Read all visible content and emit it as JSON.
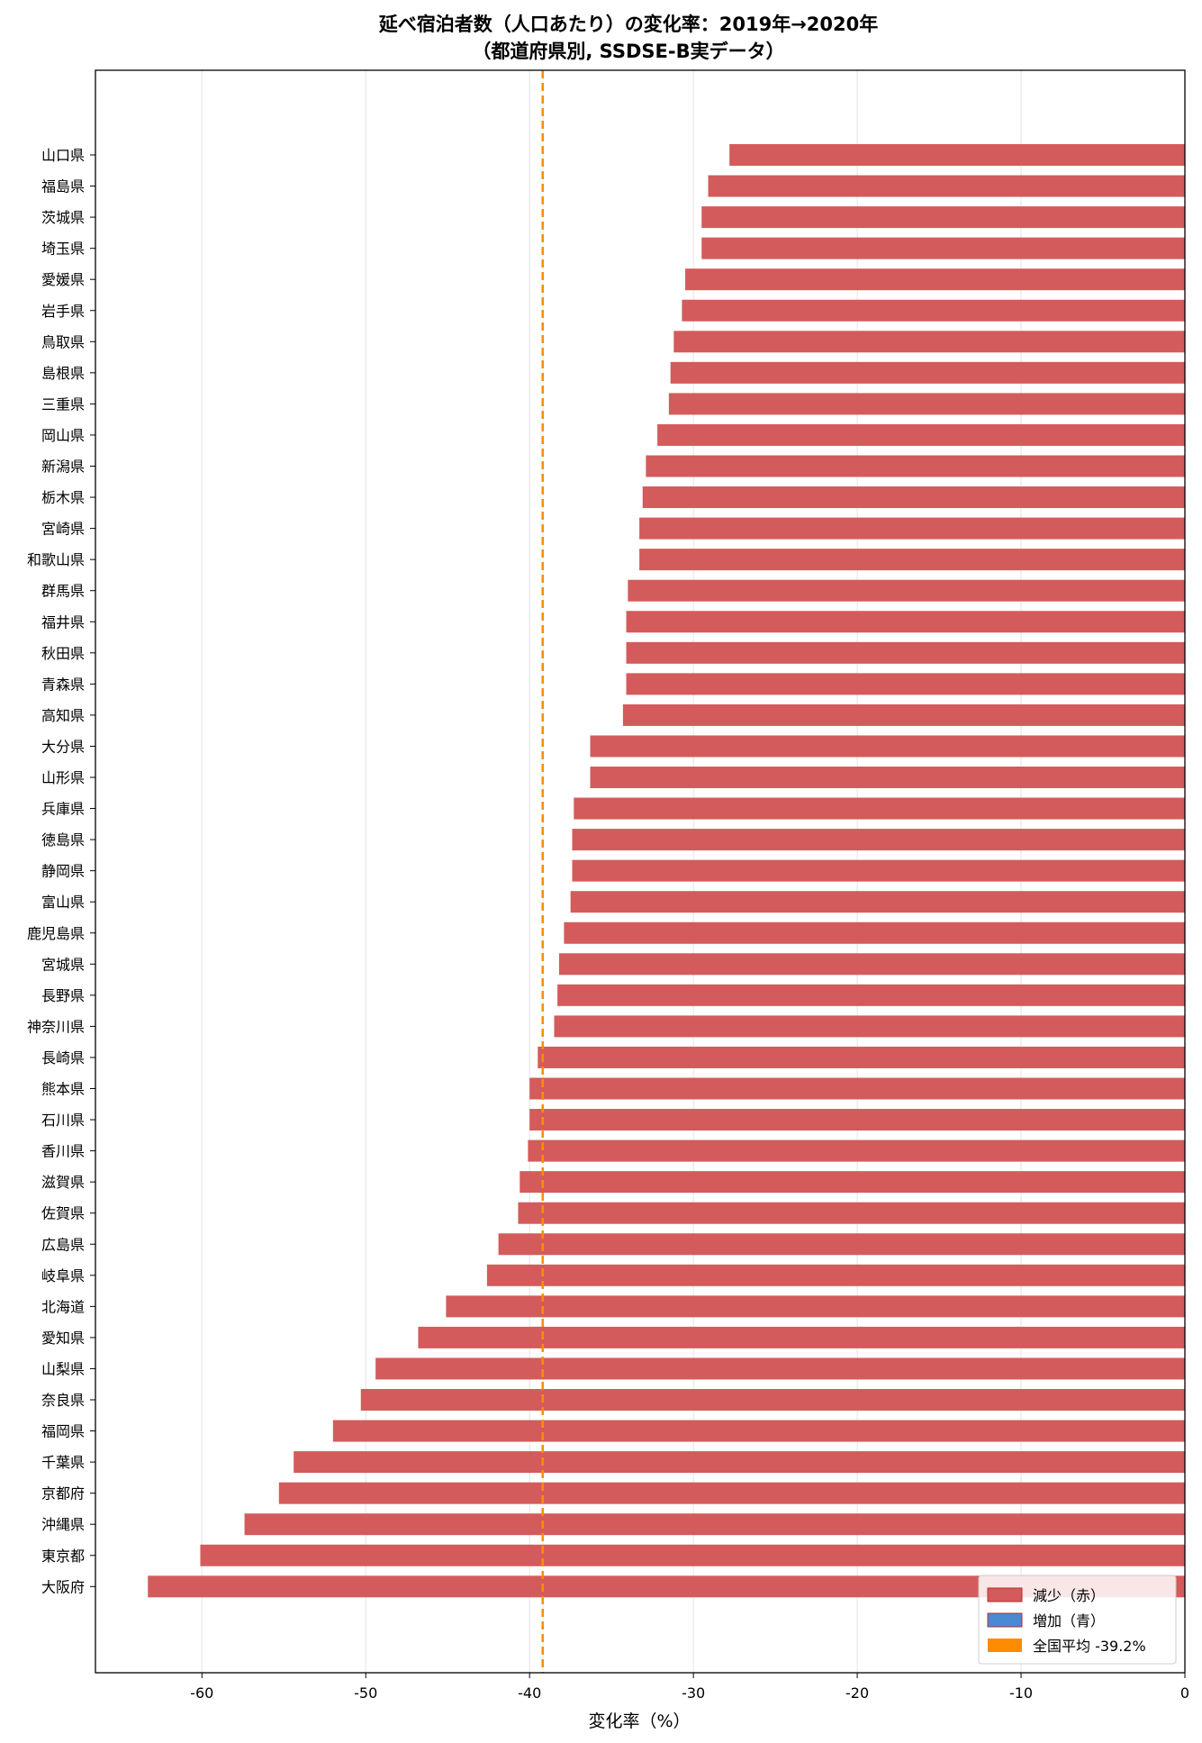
{
  "chart_data": {
    "type": "bar",
    "orientation": "horizontal",
    "title": "延べ宿泊者数（人口あたり）の変化率：2019年→2020年",
    "subtitle": "（都道府県別, SSDSE-B実データ）",
    "xlabel": "変化率（%）",
    "ylabel": "",
    "xlim": [
      -66.5,
      0
    ],
    "xticks": [
      -60,
      -50,
      -40,
      -30,
      -20,
      -10,
      0
    ],
    "xtick_labels": [
      "-60",
      "-50",
      "-40",
      "-30",
      "-20",
      "-10",
      "0"
    ],
    "grid": "vertical",
    "legend_position": "bottom-right",
    "colors": {
      "decrease": "#d45b5b",
      "increase": "#4a89d4",
      "average": "#ff8c00"
    },
    "average_value": -39.2,
    "legend": [
      {
        "label": "減少（赤）",
        "color": "#d45b5b",
        "kind": "box"
      },
      {
        "label": "増加（青）",
        "color": "#4a89d4",
        "kind": "box"
      },
      {
        "label": "全国平均 -39.2%",
        "color": "#ff8c00",
        "kind": "box"
      }
    ],
    "categories": [
      "山口県",
      "福島県",
      "茨城県",
      "埼玉県",
      "愛媛県",
      "岩手県",
      "鳥取県",
      "島根県",
      "三重県",
      "岡山県",
      "新潟県",
      "栃木県",
      "宮崎県",
      "和歌山県",
      "群馬県",
      "福井県",
      "秋田県",
      "青森県",
      "高知県",
      "大分県",
      "山形県",
      "兵庫県",
      "徳島県",
      "静岡県",
      "富山県",
      "鹿児島県",
      "宮城県",
      "長野県",
      "神奈川県",
      "長崎県",
      "熊本県",
      "石川県",
      "香川県",
      "滋賀県",
      "佐賀県",
      "広島県",
      "岐阜県",
      "北海道",
      "愛知県",
      "山梨県",
      "奈良県",
      "福岡県",
      "千葉県",
      "京都府",
      "沖縄県",
      "東京都",
      "大阪府"
    ],
    "values": [
      -27.8,
      -29.1,
      -29.5,
      -29.5,
      -30.5,
      -30.7,
      -31.2,
      -31.4,
      -31.5,
      -32.2,
      -32.9,
      -33.1,
      -33.3,
      -33.3,
      -34.0,
      -34.1,
      -34.1,
      -34.1,
      -34.3,
      -36.3,
      -36.3,
      -37.3,
      -37.4,
      -37.4,
      -37.5,
      -37.9,
      -38.2,
      -38.3,
      -38.5,
      -39.5,
      -40.0,
      -40.0,
      -40.1,
      -40.6,
      -40.7,
      -41.9,
      -42.6,
      -45.1,
      -46.8,
      -49.4,
      -50.3,
      -52.0,
      -54.4,
      -55.3,
      -57.4,
      -60.1,
      -63.3
    ]
  }
}
